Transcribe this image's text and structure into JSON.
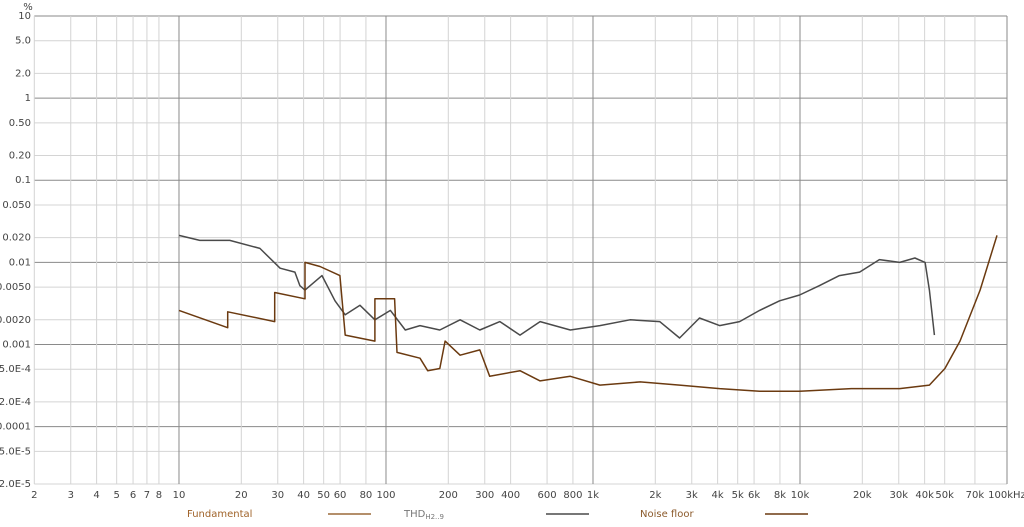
{
  "chart_data": {
    "type": "line",
    "y_unit": "%",
    "log_x": true,
    "log_y": true,
    "grid": true,
    "xlim": [
      2,
      100000
    ],
    "ylim": [
      2e-05,
      10
    ],
    "xticks": [
      2,
      3,
      4,
      5,
      6,
      7,
      8,
      10,
      20,
      30,
      40,
      50,
      60,
      80,
      100,
      200,
      300,
      400,
      600,
      800,
      {
        "value": 1000,
        "label": "1k"
      },
      {
        "value": 2000,
        "label": "2k"
      },
      {
        "value": 3000,
        "label": "3k"
      },
      {
        "value": 4000,
        "label": "4k"
      },
      {
        "value": 5000,
        "label": "5k"
      },
      {
        "value": 6000,
        "label": "6k"
      },
      {
        "value": 8000,
        "label": "8k"
      },
      {
        "value": 10000,
        "label": "10k"
      },
      {
        "value": 20000,
        "label": "20k"
      },
      {
        "value": 30000,
        "label": "30k"
      },
      {
        "value": 40000,
        "label": "40k"
      },
      {
        "value": 50000,
        "label": "50k"
      },
      {
        "value": 70000,
        "label": "70k"
      },
      {
        "value": 100000,
        "label": "100kHz"
      }
    ],
    "yticks": [
      10,
      {
        "value": 5,
        "label": "5.0"
      },
      {
        "value": 2,
        "label": "2.0"
      },
      1,
      {
        "value": 0.5,
        "label": "0.50"
      },
      {
        "value": 0.2,
        "label": "0.20"
      },
      0.1,
      {
        "value": 0.05,
        "label": "0.050"
      },
      {
        "value": 0.02,
        "label": "0.020"
      },
      0.01,
      {
        "value": 0.005,
        "label": "0.0050"
      },
      {
        "value": 0.002,
        "label": "0.0020"
      },
      0.001,
      {
        "value": 0.0005,
        "label": "5.0E-4"
      },
      {
        "value": 0.0002,
        "label": "2.0E-4"
      },
      0.0001,
      {
        "value": 5e-05,
        "label": "5.0E-5"
      },
      {
        "value": 2e-05,
        "label": "2.0E-5"
      }
    ],
    "series": [
      {
        "name": "Fundamental",
        "color": "#a0632a",
        "line_color": "#9b6a3a"
      },
      {
        "name": "THD",
        "name_sub": "H2..9",
        "color": "#777777",
        "line_color": "#4a4a4a",
        "x": [
          10,
          12.6,
          17.6,
          24.6,
          30.8,
          36.3,
          38.4,
          40.6,
          49.1,
          56.7,
          63.5,
          74.9,
          88.4,
          105,
          124,
          146,
          182,
          228,
          284,
          355,
          444,
          555,
          777,
          1080,
          1510,
          2100,
          2620,
          3270,
          4090,
          5110,
          6380,
          7970,
          9960,
          12400,
          15500,
          19400,
          24200,
          30300,
          35900,
          40200,
          42200,
          44600
        ],
        "values": [
          0.0213,
          0.0185,
          0.0185,
          0.0148,
          0.0085,
          0.0076,
          0.0052,
          0.0046,
          0.0069,
          0.0034,
          0.0023,
          0.003,
          0.002,
          0.0026,
          0.0015,
          0.0017,
          0.0015,
          0.002,
          0.0015,
          0.0019,
          0.0013,
          0.0019,
          0.0015,
          0.0017,
          0.002,
          0.0019,
          0.0012,
          0.0021,
          0.0017,
          0.0019,
          0.0026,
          0.0034,
          0.004,
          0.0052,
          0.0069,
          0.0076,
          0.0108,
          0.01,
          0.0113,
          0.01,
          0.0046,
          0.0013
        ]
      },
      {
        "name": "Noise floor",
        "color": "#8b5a2b",
        "line_color": "#6b3a10",
        "x": [
          10,
          17.2,
          17.2,
          29,
          29,
          40.6,
          40.6,
          48,
          59.9,
          63.5,
          88.4,
          88.4,
          110,
          113,
          146,
          159,
          182,
          193,
          228,
          284,
          317,
          444,
          555,
          777,
          1080,
          1690,
          2620,
          4090,
          6380,
          9960,
          17700,
          30300,
          42200,
          50100,
          59300,
          74100,
          89500
        ],
        "values": [
          0.0026,
          0.0016,
          0.0025,
          0.0019,
          0.0043,
          0.0036,
          0.01,
          0.0089,
          0.0069,
          0.0013,
          0.0011,
          0.0036,
          0.0036,
          0.0008,
          0.00068,
          0.00048,
          0.00051,
          0.0011,
          0.00074,
          0.00086,
          0.00041,
          0.00048,
          0.00036,
          0.00041,
          0.00032,
          0.00035,
          0.00032,
          0.00029,
          0.00027,
          0.00027,
          0.00029,
          0.00029,
          0.00032,
          0.00051,
          0.0011,
          0.0046,
          0.0213
        ]
      }
    ]
  }
}
